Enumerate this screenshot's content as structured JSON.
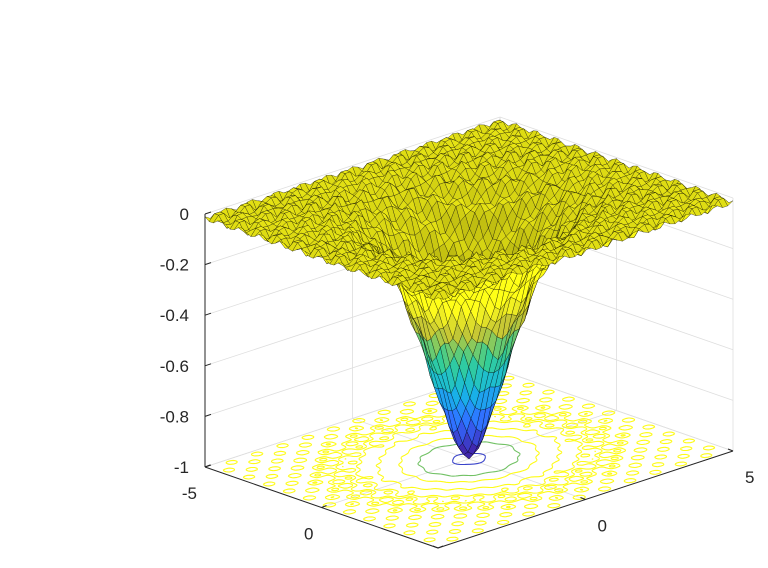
{
  "chart_data": {
    "type": "surface",
    "title": "",
    "xlabel": "",
    "ylabel": "",
    "zlabel": "",
    "xlim": [
      -5,
      5
    ],
    "ylim": [
      -5,
      5
    ],
    "zlim": [
      -1,
      0
    ],
    "x_ticks": [
      -5,
      0,
      5
    ],
    "y_ticks": [
      -5,
      0,
      5
    ],
    "z_ticks": [
      0,
      -0.2,
      -0.4,
      -0.6,
      -0.8,
      -1
    ],
    "x_tick_labels": [
      "-5",
      "0",
      "5"
    ],
    "y_tick_labels": [
      "-5",
      "0",
      "5"
    ],
    "z_tick_labels": [
      "0",
      "-0.2",
      "-0.4",
      "-0.6",
      "-0.8",
      "-1"
    ],
    "surface": {
      "colormap": [
        "#3e26a8",
        "#2d6dfe",
        "#15b0d8",
        "#31c48f",
        "#bcbd32",
        "#fefb16"
      ],
      "min_value": -1,
      "rim_value": -0.02,
      "edge_color": "#000000"
    },
    "contour": {
      "plane": "z=-1",
      "levels": [
        -0.9,
        -0.5,
        -0.3,
        -0.15,
        -0.08,
        -0.05,
        -0.03
      ]
    },
    "grid": true
  }
}
